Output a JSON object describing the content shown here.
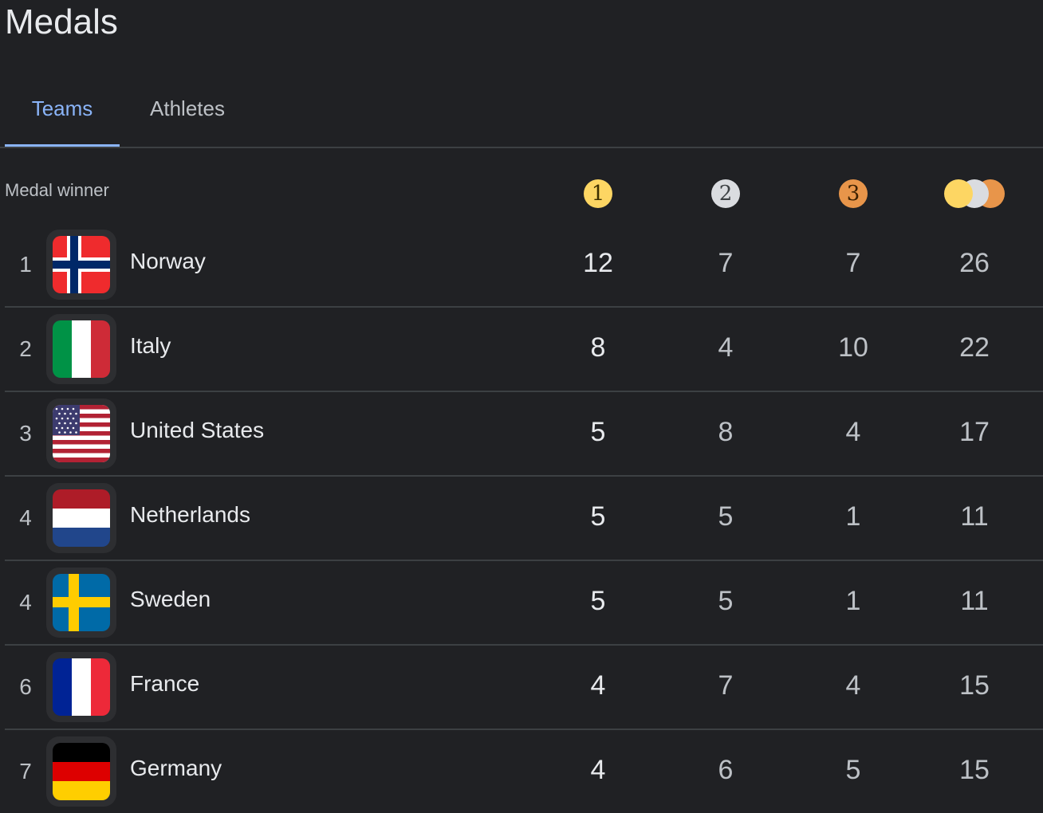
{
  "title": "Medals",
  "tabs": [
    {
      "label": "Teams",
      "active": true
    },
    {
      "label": "Athletes",
      "active": false
    }
  ],
  "table": {
    "header": {
      "team_label": "Medal winner",
      "gold_icon": "1",
      "silver_icon": "2",
      "bronze_icon": "3",
      "total_icon": "total-medals-icon"
    },
    "rows": [
      {
        "rank": "1",
        "team": "Norway",
        "flag": "norway-flag-icon",
        "gold": "12",
        "silver": "7",
        "bronze": "7",
        "total": "26"
      },
      {
        "rank": "2",
        "team": "Italy",
        "flag": "italy-flag-icon",
        "gold": "8",
        "silver": "4",
        "bronze": "10",
        "total": "22"
      },
      {
        "rank": "3",
        "team": "United States",
        "flag": "united-states-flag-icon",
        "gold": "5",
        "silver": "8",
        "bronze": "4",
        "total": "17"
      },
      {
        "rank": "4",
        "team": "Netherlands",
        "flag": "netherlands-flag-icon",
        "gold": "5",
        "silver": "5",
        "bronze": "1",
        "total": "11"
      },
      {
        "rank": "4",
        "team": "Sweden",
        "flag": "sweden-flag-icon",
        "gold": "5",
        "silver": "5",
        "bronze": "1",
        "total": "11"
      },
      {
        "rank": "6",
        "team": "France",
        "flag": "france-flag-icon",
        "gold": "4",
        "silver": "7",
        "bronze": "4",
        "total": "15"
      },
      {
        "rank": "7",
        "team": "Germany",
        "flag": "germany-flag-icon",
        "gold": "4",
        "silver": "6",
        "bronze": "5",
        "total": "15"
      }
    ]
  },
  "colors": {
    "background": "#202124",
    "accent": "#8ab4f8",
    "gold": "#fdd663",
    "silver": "#dadce0",
    "bronze": "#e8954a"
  }
}
